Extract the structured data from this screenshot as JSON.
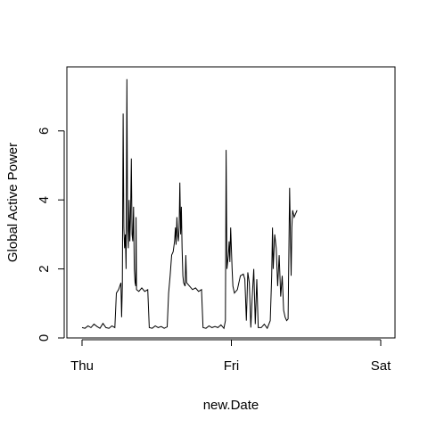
{
  "chart_data": {
    "type": "line",
    "title": "",
    "xlabel": "new.Date",
    "ylabel": "Global Active Power",
    "x_ticks": [
      {
        "label": "Thu",
        "value": 0
      },
      {
        "label": "Fri",
        "value": 1
      },
      {
        "label": "Sat",
        "value": 2
      }
    ],
    "y_ticks": [
      {
        "label": "0",
        "value": 0
      },
      {
        "label": "2",
        "value": 2
      },
      {
        "label": "4",
        "value": 4
      },
      {
        "label": "6",
        "value": 6
      }
    ],
    "xlim": [
      0,
      2
    ],
    "ylim": [
      0,
      7.6
    ],
    "grid": false,
    "legend": "none",
    "line_color": "#000000",
    "series": [
      {
        "values": [
          [
            0.0,
            0.3
          ],
          [
            0.02,
            0.28
          ],
          [
            0.04,
            0.35
          ],
          [
            0.06,
            0.3
          ],
          [
            0.08,
            0.4
          ],
          [
            0.1,
            0.33
          ],
          [
            0.12,
            0.28
          ],
          [
            0.14,
            0.42
          ],
          [
            0.16,
            0.3
          ],
          [
            0.18,
            0.28
          ],
          [
            0.2,
            0.35
          ],
          [
            0.22,
            0.3
          ],
          [
            0.23,
            1.3
          ],
          [
            0.245,
            1.4
          ],
          [
            0.26,
            1.6
          ],
          [
            0.265,
            0.6
          ],
          [
            0.27,
            1.5
          ],
          [
            0.275,
            6.5
          ],
          [
            0.28,
            3.2
          ],
          [
            0.285,
            2.6
          ],
          [
            0.29,
            3.0
          ],
          [
            0.295,
            2.0
          ],
          [
            0.3,
            7.5
          ],
          [
            0.305,
            3.2
          ],
          [
            0.31,
            2.6
          ],
          [
            0.315,
            4.0
          ],
          [
            0.32,
            2.8
          ],
          [
            0.325,
            3.5
          ],
          [
            0.33,
            5.2
          ],
          [
            0.335,
            3.0
          ],
          [
            0.34,
            2.8
          ],
          [
            0.345,
            3.8
          ],
          [
            0.35,
            2.0
          ],
          [
            0.355,
            1.6
          ],
          [
            0.36,
            1.5
          ],
          [
            0.362,
            3.5
          ],
          [
            0.365,
            1.4
          ],
          [
            0.38,
            1.35
          ],
          [
            0.4,
            1.45
          ],
          [
            0.42,
            1.35
          ],
          [
            0.44,
            1.4
          ],
          [
            0.45,
            0.3
          ],
          [
            0.47,
            0.28
          ],
          [
            0.49,
            0.35
          ],
          [
            0.51,
            0.3
          ],
          [
            0.53,
            0.33
          ],
          [
            0.55,
            0.28
          ],
          [
            0.57,
            0.32
          ],
          [
            0.58,
            1.3
          ],
          [
            0.59,
            1.8
          ],
          [
            0.6,
            2.4
          ],
          [
            0.61,
            2.5
          ],
          [
            0.62,
            2.8
          ],
          [
            0.625,
            3.2
          ],
          [
            0.63,
            2.7
          ],
          [
            0.635,
            3.5
          ],
          [
            0.64,
            3.0
          ],
          [
            0.645,
            2.8
          ],
          [
            0.65,
            3.2
          ],
          [
            0.655,
            4.5
          ],
          [
            0.66,
            3.0
          ],
          [
            0.665,
            3.8
          ],
          [
            0.67,
            2.6
          ],
          [
            0.675,
            1.8
          ],
          [
            0.68,
            1.6
          ],
          [
            0.69,
            1.5
          ],
          [
            0.695,
            2.4
          ],
          [
            0.7,
            1.6
          ],
          [
            0.72,
            1.5
          ],
          [
            0.74,
            1.4
          ],
          [
            0.76,
            1.45
          ],
          [
            0.78,
            1.35
          ],
          [
            0.8,
            1.4
          ],
          [
            0.81,
            0.3
          ],
          [
            0.83,
            0.28
          ],
          [
            0.85,
            0.35
          ],
          [
            0.87,
            0.3
          ],
          [
            0.89,
            0.33
          ],
          [
            0.91,
            0.3
          ],
          [
            0.93,
            0.38
          ],
          [
            0.95,
            0.28
          ],
          [
            0.96,
            0.5
          ],
          [
            0.965,
            5.45
          ],
          [
            0.97,
            2.0
          ],
          [
            0.98,
            2.4
          ],
          [
            0.985,
            2.8
          ],
          [
            0.99,
            2.2
          ],
          [
            0.995,
            3.2
          ],
          [
            1.0,
            2.6
          ],
          [
            1.005,
            2.0
          ],
          [
            1.01,
            1.5
          ],
          [
            1.02,
            1.3
          ],
          [
            1.04,
            1.4
          ],
          [
            1.06,
            1.8
          ],
          [
            1.08,
            1.85
          ],
          [
            1.09,
            1.7
          ],
          [
            1.1,
            0.5
          ],
          [
            1.11,
            1.9
          ],
          [
            1.12,
            1.6
          ],
          [
            1.13,
            0.3
          ],
          [
            1.14,
            1.2
          ],
          [
            1.15,
            2.0
          ],
          [
            1.16,
            0.4
          ],
          [
            1.17,
            1.7
          ],
          [
            1.18,
            0.3
          ],
          [
            1.2,
            0.3
          ],
          [
            1.22,
            0.4
          ],
          [
            1.24,
            0.28
          ],
          [
            1.26,
            0.5
          ],
          [
            1.27,
            1.8
          ],
          [
            1.275,
            3.2
          ],
          [
            1.28,
            2.0
          ],
          [
            1.29,
            3.0
          ],
          [
            1.3,
            2.6
          ],
          [
            1.31,
            1.5
          ],
          [
            1.32,
            2.4
          ],
          [
            1.33,
            1.2
          ],
          [
            1.34,
            1.8
          ],
          [
            1.35,
            0.8
          ],
          [
            1.36,
            0.6
          ],
          [
            1.37,
            0.5
          ],
          [
            1.38,
            0.55
          ],
          [
            1.39,
            4.35
          ],
          [
            1.4,
            1.8
          ],
          [
            1.405,
            3.2
          ],
          [
            1.41,
            3.7
          ],
          [
            1.42,
            3.5
          ],
          [
            1.44,
            3.7
          ]
        ]
      }
    ]
  }
}
